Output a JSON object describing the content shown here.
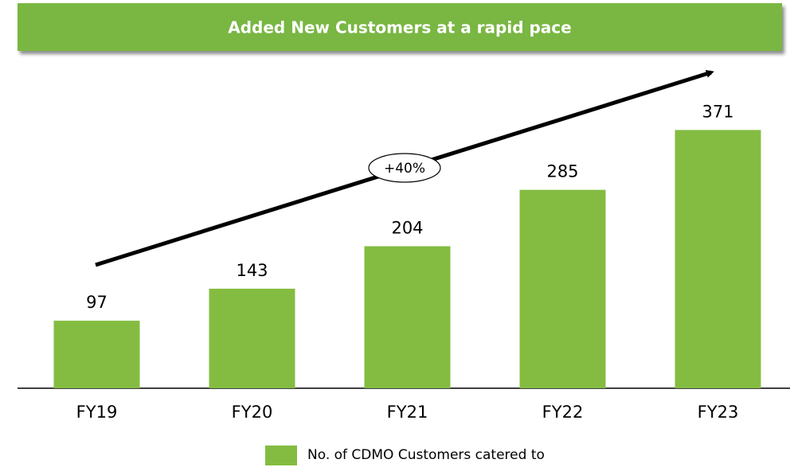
{
  "chart_data": {
    "type": "bar",
    "title": "Added New Customers at a rapid pace",
    "categories": [
      "FY19",
      "FY20",
      "FY21",
      "FY22",
      "FY23"
    ],
    "series": [
      {
        "name": "No. of CDMO Customers catered to",
        "color": "#84bc41",
        "values": [
          97,
          143,
          204,
          285,
          371
        ]
      }
    ],
    "ylim": [
      0,
      400
    ],
    "annotation": "+40%"
  }
}
